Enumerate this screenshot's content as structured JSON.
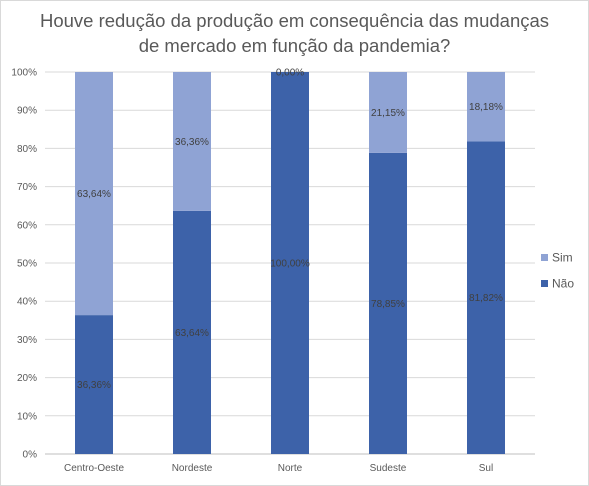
{
  "chart_data": {
    "type": "bar",
    "stacked": true,
    "percent": true,
    "title": "Houve redução da produção em consequência das mudanças\nde mercado em função da pandemia?",
    "categories": [
      "Centro-Oeste",
      "Nordeste",
      "Norte",
      "Sudeste",
      "Sul"
    ],
    "series": [
      {
        "name": "Não",
        "values": [
          36.36,
          63.64,
          100.0,
          78.85,
          81.82
        ],
        "labels": [
          "36,36%",
          "63,64%",
          "100,00%",
          "78,85%",
          "81,82%"
        ],
        "color": "#3d62a9"
      },
      {
        "name": "Sim",
        "values": [
          63.64,
          36.36,
          0.0,
          21.15,
          18.18
        ],
        "labels": [
          "63,64%",
          "36,36%",
          "0,00%",
          "21,15%",
          "18,18%"
        ],
        "color": "#8fa3d4"
      }
    ],
    "y_ticks": [
      "0%",
      "10%",
      "20%",
      "30%",
      "40%",
      "50%",
      "60%",
      "70%",
      "80%",
      "90%",
      "100%"
    ],
    "ylim": [
      0,
      100
    ],
    "xlabel": "",
    "ylabel": "",
    "grid": true,
    "legend_position": "right"
  }
}
